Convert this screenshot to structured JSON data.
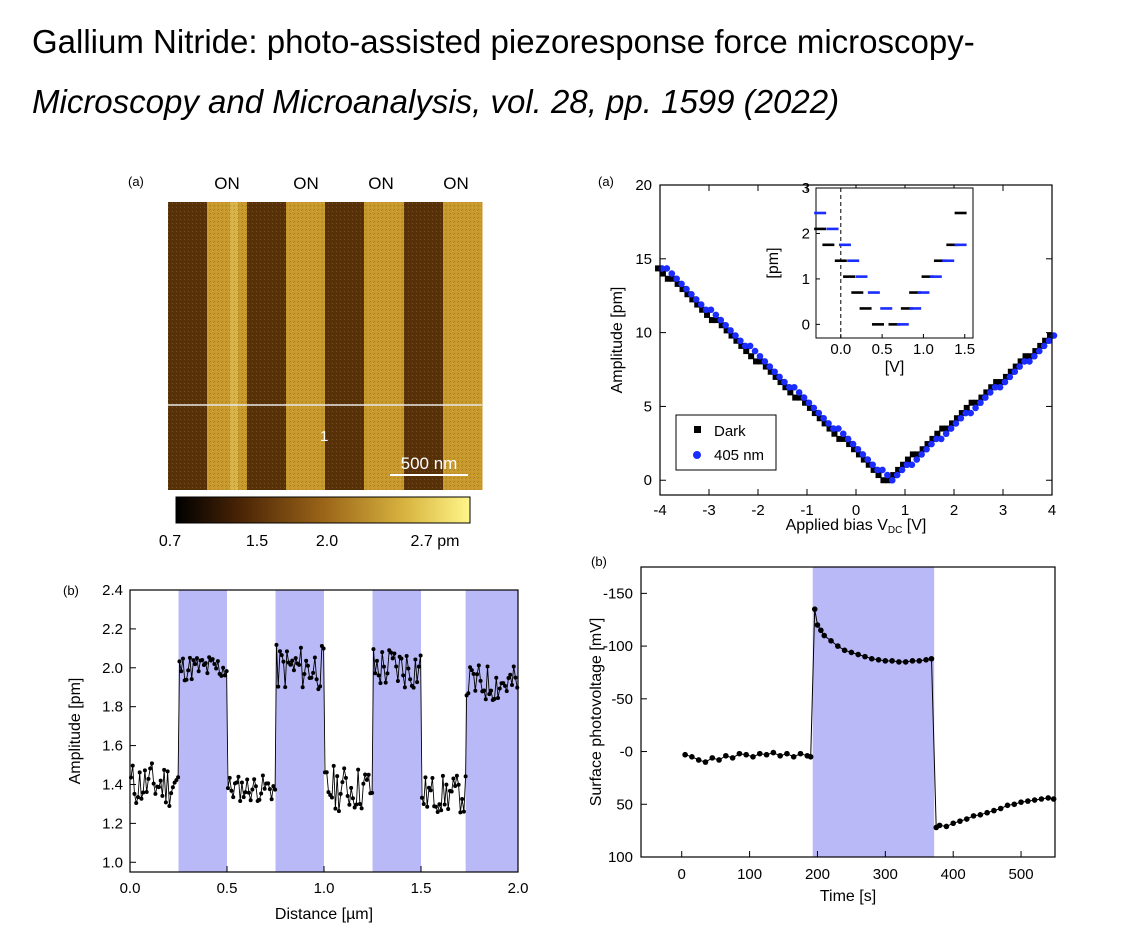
{
  "header": {
    "title": "Gallium Nitride: photo-assisted piezoresponse force microscopy-",
    "citation": "Microscopy and Microanalysis, vol. 28, pp. 1599 (2022)"
  },
  "colors": {
    "highlight": "#b9b9f7",
    "dark_series": "#000000",
    "light_series": "#1a2cff",
    "afm_dark": "#5a3208",
    "afm_light": "#c99a2a"
  },
  "afm_image": {
    "panel_label": "(a)",
    "on_labels": [
      "ON",
      "ON",
      "ON",
      "ON"
    ],
    "line_label": "1",
    "scale_bar": "500 nm",
    "colorbar_ticks": [
      "0.7",
      "1.5",
      "2.0",
      "2.7 pm"
    ],
    "colorbar_stops": [
      "#000000",
      "#4a2406",
      "#9a6418",
      "#d8b440",
      "#fff68a"
    ]
  },
  "chart_data": [
    {
      "type": "scatter",
      "panel_label": "(a)",
      "xlabel": "Applied bias V",
      "xlabel_sub": "DC",
      "xlabel_unit": "[V]",
      "ylabel": "Amplitude [pm]",
      "xlim": [
        -4,
        4
      ],
      "ylim": [
        -1,
        20
      ],
      "xticks": [
        "-4",
        "-3",
        "-2",
        "-1",
        "0",
        "1",
        "2",
        "3",
        "4"
      ],
      "yticks": [
        "0",
        "5",
        "10",
        "15",
        "20"
      ],
      "legend_position": "bottom-left",
      "series": [
        {
          "name": "Dark",
          "marker": "square",
          "x_range": [
            -4,
            4
          ],
          "vertex_x": 0.65,
          "slope_left": 3.1,
          "slope_right": 2.9
        },
        {
          "name": "405 nm",
          "marker": "circle",
          "x_range": [
            -4,
            4
          ],
          "vertex_x": 0.68,
          "slope_left": 3.1,
          "slope_right": 2.9
        }
      ],
      "inset": {
        "xlabel": "[V]",
        "ylabel": "[pm]",
        "xlim": [
          -0.3,
          1.6
        ],
        "ylim": [
          -0.3,
          3
        ],
        "xticks": [
          "0.0",
          "0.5",
          "1.0",
          "1.5"
        ],
        "yticks": [
          "0",
          "1",
          "2",
          "3"
        ],
        "dashed_line_x": 0.0,
        "series": [
          {
            "name": "Dark",
            "x": [
              -0.25,
              -0.15,
              0.0,
              0.1,
              0.2,
              0.3,
              0.45,
              0.65,
              0.8,
              0.9,
              1.05,
              1.2,
              1.35,
              1.45
            ],
            "y": [
              2.1,
              1.75,
              1.4,
              1.05,
              0.7,
              0.35,
              0.0,
              0.0,
              0.35,
              0.7,
              1.05,
              1.4,
              1.75,
              2.45
            ]
          },
          {
            "name": "405 nm",
            "x": [
              -0.25,
              -0.1,
              0.05,
              0.15,
              0.25,
              0.4,
              0.55,
              0.75,
              0.9,
              1.0,
              1.15,
              1.3,
              1.45
            ],
            "y": [
              2.45,
              2.1,
              1.75,
              1.4,
              1.05,
              0.7,
              0.35,
              0.0,
              0.35,
              0.7,
              1.05,
              1.4,
              1.75
            ]
          }
        ]
      }
    },
    {
      "type": "line",
      "panel_label": "(b)",
      "xlabel": "Distance [µm]",
      "ylabel": "Amplitude [pm]",
      "xlim": [
        0,
        2
      ],
      "ylim": [
        0.95,
        2.4
      ],
      "xticks": [
        "0.0",
        "0.5",
        "1.0",
        "1.5",
        "2.0"
      ],
      "yticks": [
        "1.0",
        "1.2",
        "1.4",
        "1.6",
        "1.8",
        "2.0",
        "2.2",
        "2.4"
      ],
      "highlight_regions": [
        [
          0.25,
          0.5
        ],
        [
          0.75,
          1.0
        ],
        [
          1.25,
          1.5
        ],
        [
          1.73,
          2.0
        ]
      ],
      "segments": [
        {
          "x_range": [
            0.0,
            0.25
          ],
          "level": 1.4,
          "noise": 0.12
        },
        {
          "x_range": [
            0.25,
            0.5
          ],
          "level": 2.0,
          "noise": 0.07
        },
        {
          "x_range": [
            0.5,
            0.75
          ],
          "level": 1.38,
          "noise": 0.07
        },
        {
          "x_range": [
            0.75,
            1.0
          ],
          "level": 2.0,
          "noise": 0.12
        },
        {
          "x_range": [
            1.0,
            1.25
          ],
          "level": 1.38,
          "noise": 0.12
        },
        {
          "x_range": [
            1.25,
            1.5
          ],
          "level": 2.0,
          "noise": 0.12
        },
        {
          "x_range": [
            1.5,
            1.73
          ],
          "level": 1.35,
          "noise": 0.1
        },
        {
          "x_range": [
            1.73,
            2.0
          ],
          "level": 1.92,
          "noise": 0.1
        }
      ]
    },
    {
      "type": "line",
      "panel_label": "(b)",
      "xlabel": "Time [s]",
      "ylabel": "Surface photovoltage [mV]",
      "xlim": [
        -60,
        550
      ],
      "ylim": [
        100,
        -175
      ],
      "y_inverted": true,
      "xticks": [
        "0",
        "100",
        "200",
        "300",
        "400",
        "500"
      ],
      "yticks": [
        "-150",
        "-100",
        "-50",
        "-0",
        "50",
        "100"
      ],
      "highlight_regions": [
        [
          193,
          372
        ]
      ],
      "points": [
        [
          5,
          3
        ],
        [
          15,
          5
        ],
        [
          25,
          8
        ],
        [
          35,
          10
        ],
        [
          45,
          6
        ],
        [
          55,
          8
        ],
        [
          65,
          4
        ],
        [
          75,
          6
        ],
        [
          85,
          2
        ],
        [
          95,
          3
        ],
        [
          105,
          5
        ],
        [
          115,
          2
        ],
        [
          125,
          3
        ],
        [
          135,
          1
        ],
        [
          145,
          4
        ],
        [
          155,
          2
        ],
        [
          165,
          5
        ],
        [
          175,
          2
        ],
        [
          185,
          4
        ],
        [
          190,
          5
        ],
        [
          196,
          -135
        ],
        [
          200,
          -120
        ],
        [
          205,
          -115
        ],
        [
          210,
          -110
        ],
        [
          220,
          -105
        ],
        [
          230,
          -100
        ],
        [
          240,
          -96
        ],
        [
          250,
          -94
        ],
        [
          260,
          -92
        ],
        [
          270,
          -90
        ],
        [
          280,
          -88
        ],
        [
          290,
          -87
        ],
        [
          300,
          -86
        ],
        [
          310,
          -86
        ],
        [
          320,
          -85
        ],
        [
          330,
          -85
        ],
        [
          340,
          -86
        ],
        [
          350,
          -86
        ],
        [
          360,
          -87
        ],
        [
          368,
          -88
        ],
        [
          375,
          72
        ],
        [
          380,
          70
        ],
        [
          390,
          71
        ],
        [
          400,
          68
        ],
        [
          410,
          66
        ],
        [
          420,
          64
        ],
        [
          430,
          61
        ],
        [
          440,
          60
        ],
        [
          450,
          58
        ],
        [
          460,
          56
        ],
        [
          470,
          54
        ],
        [
          480,
          51
        ],
        [
          490,
          50
        ],
        [
          500,
          48
        ],
        [
          510,
          47
        ],
        [
          520,
          46
        ],
        [
          530,
          45
        ],
        [
          540,
          44
        ],
        [
          548,
          45
        ]
      ]
    }
  ]
}
